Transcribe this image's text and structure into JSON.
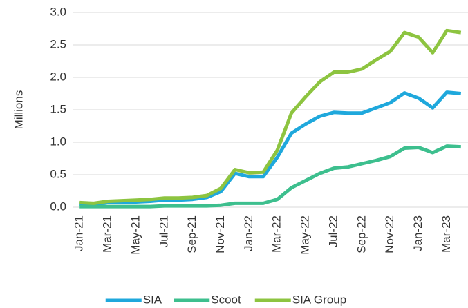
{
  "chart_data": {
    "type": "line",
    "y_label": "Millions",
    "categories": [
      "Jan-21",
      null,
      "Mar-21",
      null,
      "May-21",
      null,
      "Jul-21",
      null,
      "Sep-21",
      null,
      "Nov-21",
      null,
      "Jan-22",
      null,
      "Mar-22",
      null,
      "May-22",
      null,
      "Jul-22",
      null,
      "Sep-22",
      null,
      "Nov-22",
      null,
      "Jan-23",
      null,
      "Mar-23",
      null
    ],
    "series": [
      {
        "name": "SIA",
        "color": "#1fa8dc",
        "values": [
          0.05,
          0.04,
          0.07,
          0.08,
          0.08,
          0.09,
          0.11,
          0.11,
          0.12,
          0.15,
          0.24,
          0.52,
          0.47,
          0.47,
          0.77,
          1.14,
          1.28,
          1.4,
          1.46,
          1.45,
          1.45,
          1.53,
          1.61,
          1.76,
          1.68,
          1.53,
          1.77,
          1.75
        ]
      },
      {
        "name": "Scoot",
        "color": "#3dbf8e",
        "values": [
          0.01,
          0.01,
          0.01,
          0.01,
          0.01,
          0.01,
          0.02,
          0.02,
          0.02,
          0.02,
          0.03,
          0.06,
          0.06,
          0.06,
          0.12,
          0.3,
          0.41,
          0.52,
          0.6,
          0.62,
          0.67,
          0.72,
          0.78,
          0.91,
          0.92,
          0.84,
          0.94,
          0.93
        ]
      },
      {
        "name": "SIA Group",
        "color": "#8dc440",
        "values": [
          0.07,
          0.06,
          0.09,
          0.1,
          0.11,
          0.12,
          0.14,
          0.14,
          0.15,
          0.18,
          0.29,
          0.58,
          0.53,
          0.54,
          0.88,
          1.45,
          1.7,
          1.93,
          2.08,
          2.08,
          2.13,
          2.27,
          2.4,
          2.69,
          2.62,
          2.38,
          2.72,
          2.69
        ]
      }
    ],
    "ylim": [
      0,
      3
    ],
    "yticks": [
      {
        "value": 0,
        "label": "0.0"
      },
      0.5,
      {
        "value": 1,
        "label": "1.0"
      },
      1.5,
      {
        "value": 2,
        "label": "2.0"
      },
      2.5,
      {
        "value": 3,
        "label": "3.0"
      }
    ],
    "grid": true,
    "legend": "bottom"
  }
}
